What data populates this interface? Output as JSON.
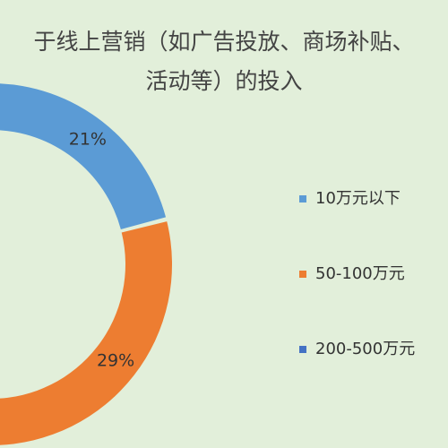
{
  "chart_data": {
    "type": "donut",
    "title_lines": [
      "于线上营销（如广告投放、商场补贴、",
      "活动等）的投入"
    ],
    "categories": [
      "10万元以下",
      "50-100万元",
      "200-500万元"
    ],
    "values": [
      21,
      29,
      null
    ],
    "value_labels": [
      "21%",
      "29%",
      null
    ],
    "colors": [
      "#5b9bd5",
      "#ed7d31",
      "#4472c4"
    ],
    "legend_position": "right"
  }
}
